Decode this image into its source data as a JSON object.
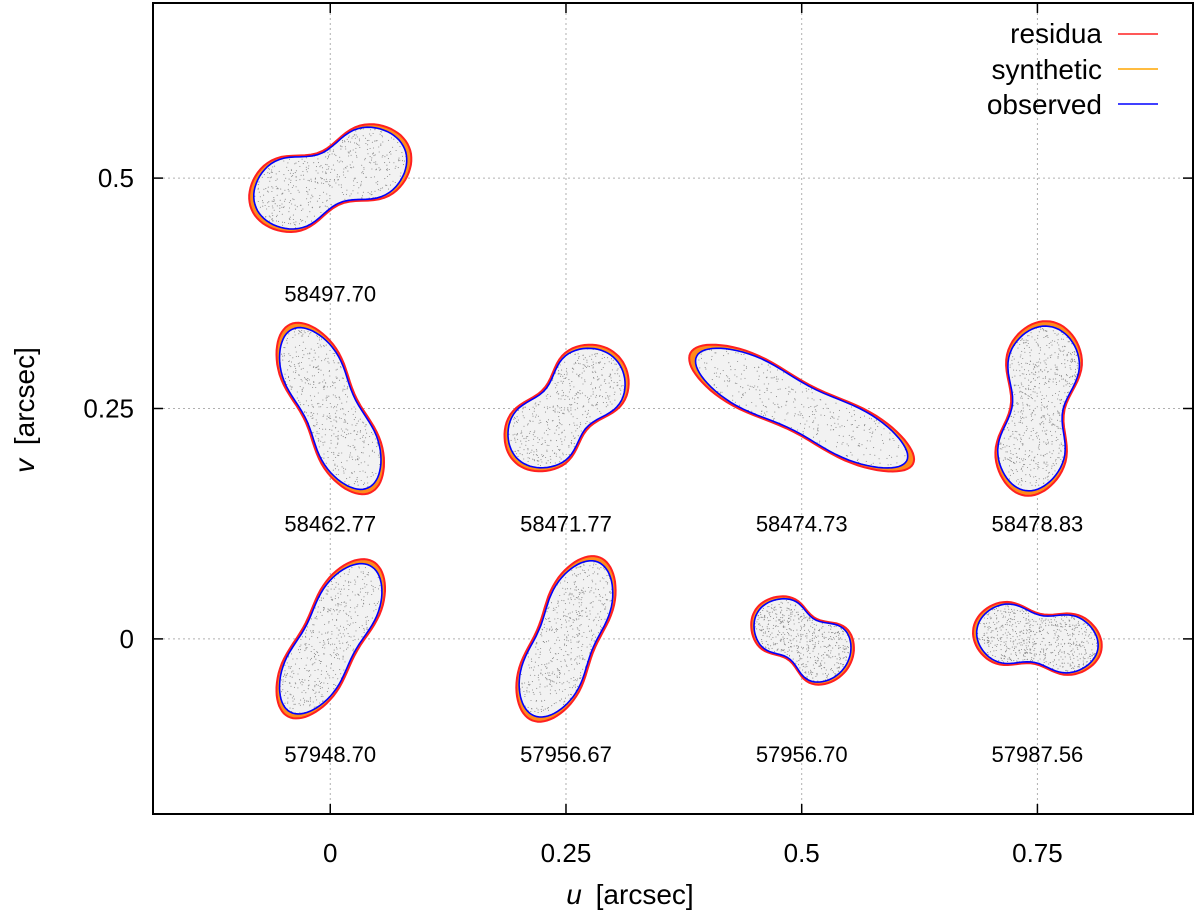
{
  "chart_data": {
    "type": "scatter",
    "title": "",
    "xlabel_var": "u",
    "xlabel_unit": "[arcsec]",
    "ylabel_var": "v",
    "ylabel_unit": "[arcsec]",
    "xlim": [
      -0.188,
      0.915
    ],
    "ylim": [
      -0.19,
      0.69
    ],
    "xticks": [
      0,
      0.25,
      0.5,
      0.75
    ],
    "xtick_labels": [
      "0",
      "0.25",
      "0.5",
      "0.75"
    ],
    "yticks": [
      0,
      0.25,
      0.5
    ],
    "ytick_labels": [
      "0",
      "0.25",
      "0.5"
    ],
    "grid": true,
    "legend_position": "top-right",
    "colors": {
      "residua": "#ff2020",
      "synthetic": "#ffa500",
      "observed": "#0000ff",
      "fill": "#888888",
      "grid": "#b0b0b0"
    },
    "series": [
      {
        "name": "residua",
        "color": "#ff2020"
      },
      {
        "name": "synthetic",
        "color": "#ffa500"
      },
      {
        "name": "observed",
        "color": "#0000ff"
      }
    ],
    "silhouettes": [
      {
        "epoch": "58497.70",
        "cx": 0.0,
        "cy": 0.5,
        "angle_deg": 22,
        "len": 0.085,
        "w1": 0.045,
        "w2": 0.045,
        "neck": 0.55
      },
      {
        "epoch": "58462.77",
        "cx": 0.0,
        "cy": 0.25,
        "angle_deg": -65,
        "len": 0.095,
        "w1": 0.035,
        "w2": 0.035,
        "neck": 0.7
      },
      {
        "epoch": "58471.77",
        "cx": 0.25,
        "cy": 0.25,
        "angle_deg": 48,
        "len": 0.075,
        "w1": 0.042,
        "w2": 0.045,
        "neck": 0.6
      },
      {
        "epoch": "58474.73",
        "cx": 0.5,
        "cy": 0.25,
        "angle_deg": -27,
        "len": 0.125,
        "w1": 0.032,
        "w2": 0.03,
        "neck": 0.7
      },
      {
        "epoch": "58478.83",
        "cx": 0.75,
        "cy": 0.25,
        "angle_deg": 82,
        "len": 0.09,
        "w1": 0.04,
        "w2": 0.045,
        "neck": 0.55
      },
      {
        "epoch": "57948.70",
        "cx": 0.0,
        "cy": 0.0,
        "angle_deg": 62,
        "len": 0.09,
        "w1": 0.033,
        "w2": 0.035,
        "neck": 0.75
      },
      {
        "epoch": "57956.67",
        "cx": 0.25,
        "cy": 0.0,
        "angle_deg": 68,
        "len": 0.09,
        "w1": 0.035,
        "w2": 0.035,
        "neck": 0.75
      },
      {
        "epoch": "57956.70",
        "cx": 0.5,
        "cy": 0.0,
        "angle_deg": -33,
        "len": 0.055,
        "w1": 0.033,
        "w2": 0.04,
        "neck": 0.6
      },
      {
        "epoch": "57987.56",
        "cx": 0.75,
        "cy": 0.0,
        "angle_deg": -10,
        "len": 0.065,
        "w1": 0.037,
        "w2": 0.035,
        "neck": 0.62
      }
    ],
    "label_offset_v": -0.125
  }
}
